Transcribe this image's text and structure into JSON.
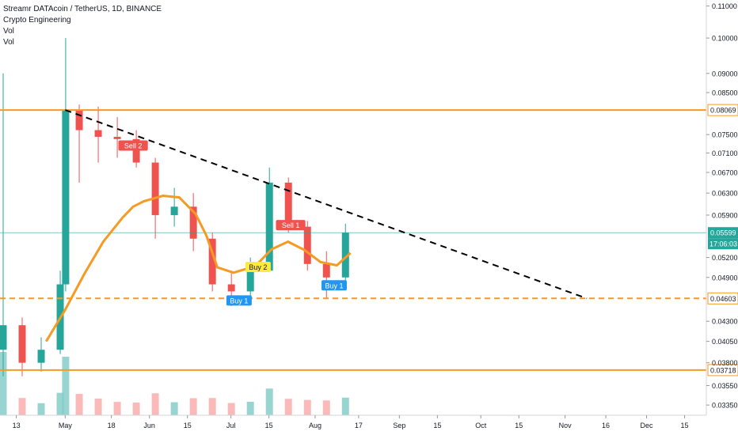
{
  "legend": {
    "title": "Streamr DATAcoin / TetherUS, 1D, BINANCE",
    "indicator": "Crypto Engineering",
    "vol1": "Vol",
    "vol2": "Vol"
  },
  "colors": {
    "up": "#26a69a",
    "down": "#ef5350",
    "up_volume": "#80cbc4",
    "down_volume": "#f7a9a7",
    "level_lines": "#f59a23",
    "moving_average": "#f59a23",
    "trendline": "#000000",
    "last_price": "#26a69a",
    "buy_label": "#2196f3",
    "buy2_label": "#ffeb3b",
    "sell_label": "#ef5350"
  },
  "chart_data": {
    "type": "candlestick",
    "y_scale": "log",
    "ylim": [
      0.0325,
      0.112
    ],
    "y_ticks": [
      "0.11000",
      "0.10000",
      "0.09000",
      "0.08500",
      "0.07500",
      "0.07100",
      "0.06700",
      "0.06300",
      "0.05900",
      "0.05200",
      "0.04900",
      "0.04300",
      "0.04050",
      "0.03800",
      "0.03550",
      "0.03350"
    ],
    "x_ticks": [
      {
        "label": "13",
        "date": "2020-04-13"
      },
      {
        "label": "May",
        "date": "2020-05-01"
      },
      {
        "label": "18",
        "date": "2020-05-18"
      },
      {
        "label": "Jun",
        "date": "2020-06-01"
      },
      {
        "label": "15",
        "date": "2020-06-15"
      },
      {
        "label": "Jul",
        "date": "2020-07-01"
      },
      {
        "label": "15",
        "date": "2020-07-15"
      },
      {
        "label": "Aug",
        "date": "2020-08-01"
      },
      {
        "label": "17",
        "date": "2020-08-17"
      },
      {
        "label": "Sep",
        "date": "2020-09-01"
      },
      {
        "label": "15",
        "date": "2020-09-15"
      },
      {
        "label": "Oct",
        "date": "2020-10-01"
      },
      {
        "label": "15",
        "date": "2020-10-15"
      },
      {
        "label": "Nov",
        "date": "2020-11-01"
      },
      {
        "label": "16",
        "date": "2020-11-16"
      },
      {
        "label": "Dec",
        "date": "2020-12-01"
      },
      {
        "label": "15",
        "date": "2020-12-15"
      }
    ],
    "horizontal_levels": [
      {
        "value": 0.08069,
        "label": "0.08069",
        "style": "solid"
      },
      {
        "value": 0.04603,
        "label": "0.04603",
        "style": "dashed"
      },
      {
        "value": 0.03718,
        "label": "0.03718",
        "style": "solid"
      }
    ],
    "last_price": {
      "value": 0.05599,
      "label": "0.05599",
      "countdown": "17:06:03"
    },
    "trendline": {
      "from": {
        "date": "2020-05-01",
        "value": 0.0807
      },
      "to": {
        "date": "2020-11-09",
        "value": 0.04603
      },
      "style": "dashed"
    },
    "signals": [
      {
        "label": "Sell 2",
        "date": "2020-05-26",
        "value": 0.0725,
        "type": "sell"
      },
      {
        "label": "Sell 1",
        "date": "2020-07-23",
        "value": 0.0572,
        "type": "sell"
      },
      {
        "label": "Buy 2",
        "date": "2020-07-11",
        "value": 0.0505,
        "type": "buy2"
      },
      {
        "label": "Buy 1",
        "date": "2020-07-04",
        "value": 0.0457,
        "type": "buy"
      },
      {
        "label": "Buy 1",
        "date": "2020-08-08",
        "value": 0.0478,
        "type": "buy"
      }
    ],
    "moving_average": [
      {
        "date": "2020-04-24",
        "value": 0.0405
      },
      {
        "date": "2020-05-01",
        "value": 0.0445
      },
      {
        "date": "2020-05-08",
        "value": 0.0495
      },
      {
        "date": "2020-05-15",
        "value": 0.0545
      },
      {
        "date": "2020-05-22",
        "value": 0.0585
      },
      {
        "date": "2020-05-26",
        "value": 0.0605
      },
      {
        "date": "2020-05-30",
        "value": 0.0615
      },
      {
        "date": "2020-06-06",
        "value": 0.0625
      },
      {
        "date": "2020-06-12",
        "value": 0.0622
      },
      {
        "date": "2020-06-18",
        "value": 0.0592
      },
      {
        "date": "2020-06-22",
        "value": 0.0555
      },
      {
        "date": "2020-06-26",
        "value": 0.0505
      },
      {
        "date": "2020-07-02",
        "value": 0.0497
      },
      {
        "date": "2020-07-10",
        "value": 0.0507
      },
      {
        "date": "2020-07-16",
        "value": 0.0533
      },
      {
        "date": "2020-07-22",
        "value": 0.0545
      },
      {
        "date": "2020-07-28",
        "value": 0.0532
      },
      {
        "date": "2020-08-03",
        "value": 0.0513
      },
      {
        "date": "2020-08-09",
        "value": 0.0508
      },
      {
        "date": "2020-08-14",
        "value": 0.0527
      }
    ],
    "candles_weekly_approx": [
      {
        "date": "2020-04-07",
        "open": 0.0395,
        "high": 0.09,
        "low": 0.0365,
        "close": 0.0425
      },
      {
        "date": "2020-04-14",
        "open": 0.0425,
        "high": 0.0435,
        "low": 0.0365,
        "close": 0.038
      },
      {
        "date": "2020-04-21",
        "open": 0.038,
        "high": 0.041,
        "low": 0.037,
        "close": 0.0395
      },
      {
        "date": "2020-04-28",
        "open": 0.0395,
        "high": 0.05,
        "low": 0.039,
        "close": 0.048
      },
      {
        "date": "2020-04-30",
        "open": 0.048,
        "high": 0.1,
        "low": 0.047,
        "close": 0.0806
      },
      {
        "date": "2020-05-05",
        "open": 0.0806,
        "high": 0.082,
        "low": 0.065,
        "close": 0.076
      },
      {
        "date": "2020-05-12",
        "open": 0.076,
        "high": 0.0815,
        "low": 0.069,
        "close": 0.0745
      },
      {
        "date": "2020-05-19",
        "open": 0.0745,
        "high": 0.079,
        "low": 0.07,
        "close": 0.074
      },
      {
        "date": "2020-05-26",
        "open": 0.074,
        "high": 0.076,
        "low": 0.068,
        "close": 0.069
      },
      {
        "date": "2020-06-02",
        "open": 0.069,
        "high": 0.07,
        "low": 0.055,
        "close": 0.059
      },
      {
        "date": "2020-06-09",
        "open": 0.059,
        "high": 0.064,
        "low": 0.057,
        "close": 0.0605
      },
      {
        "date": "2020-06-16",
        "open": 0.0605,
        "high": 0.063,
        "low": 0.053,
        "close": 0.055
      },
      {
        "date": "2020-06-23",
        "open": 0.055,
        "high": 0.056,
        "low": 0.047,
        "close": 0.048
      },
      {
        "date": "2020-06-30",
        "open": 0.048,
        "high": 0.05,
        "low": 0.045,
        "close": 0.047
      },
      {
        "date": "2020-07-07",
        "open": 0.047,
        "high": 0.052,
        "low": 0.046,
        "close": 0.05
      },
      {
        "date": "2020-07-14",
        "open": 0.05,
        "high": 0.068,
        "low": 0.05,
        "close": 0.065
      },
      {
        "date": "2020-07-21",
        "open": 0.065,
        "high": 0.066,
        "low": 0.056,
        "close": 0.057
      },
      {
        "date": "2020-07-28",
        "open": 0.057,
        "high": 0.058,
        "low": 0.05,
        "close": 0.051
      },
      {
        "date": "2020-08-04",
        "open": 0.051,
        "high": 0.053,
        "low": 0.046,
        "close": 0.049
      },
      {
        "date": "2020-08-11",
        "open": 0.049,
        "high": 0.0575,
        "low": 0.048,
        "close": 0.056
      }
    ]
  }
}
